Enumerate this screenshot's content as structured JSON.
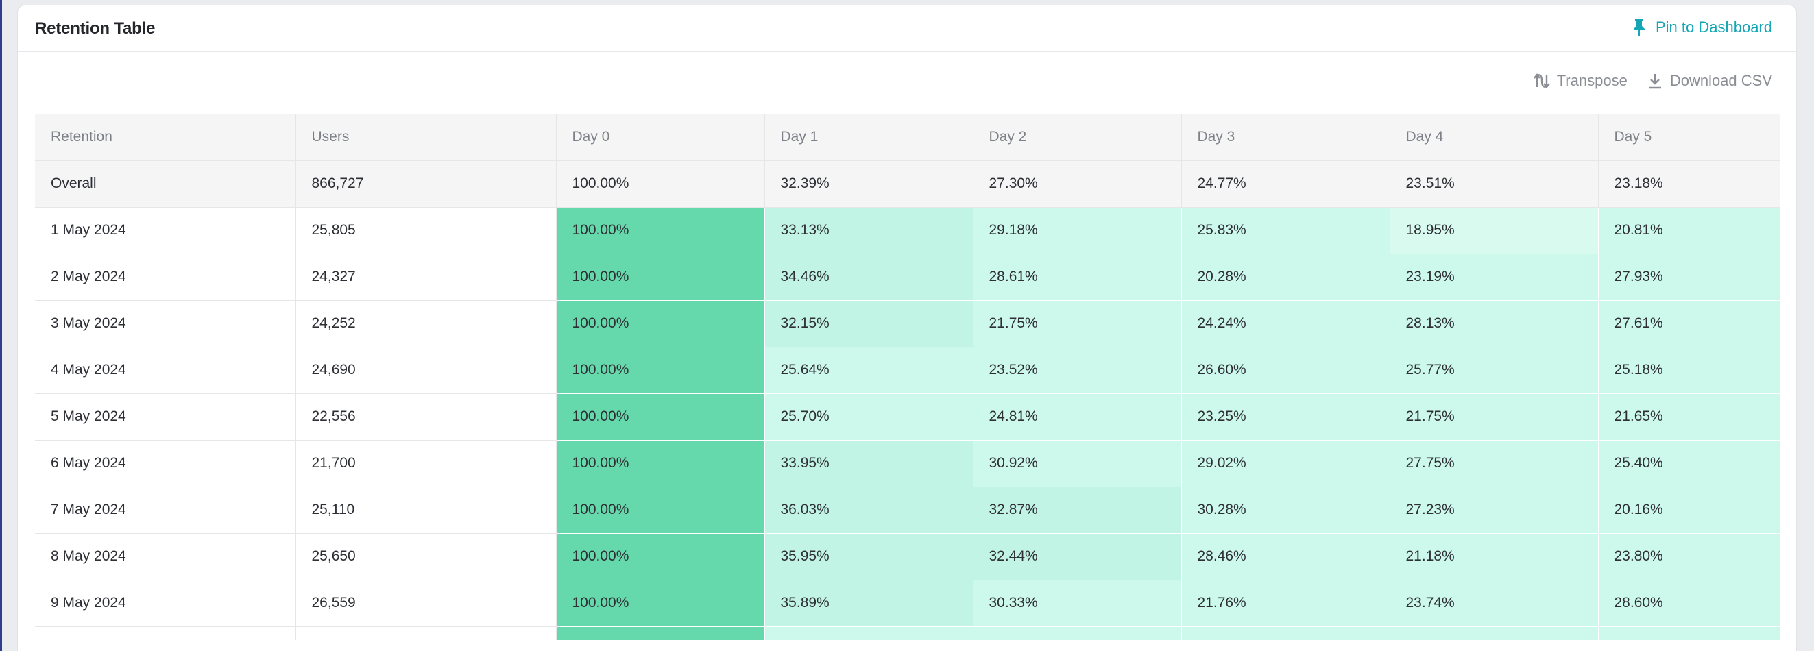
{
  "card": {
    "title": "Retention Table",
    "pin_label": "Pin to Dashboard",
    "transpose_label": "Transpose",
    "download_label": "Download CSV"
  },
  "colors": {
    "accent": "#14a6b4",
    "day0_cell": "#65d9ac",
    "heat_light": "#d9fbef",
    "heat_mid": "#cdf8ec",
    "heat_strong": "#c1f4e4"
  },
  "table": {
    "headers": [
      "Retention",
      "Users",
      "Day 0",
      "Day 1",
      "Day 2",
      "Day 3",
      "Day 4",
      "Day 5"
    ],
    "overall": {
      "label": "Overall",
      "users": "866,727",
      "days": [
        "100.00%",
        "32.39%",
        "27.30%",
        "24.77%",
        "23.51%",
        "23.18%"
      ]
    },
    "rows": [
      {
        "label": "1 May 2024",
        "users": "25,805",
        "days": [
          "100.00%",
          "33.13%",
          "29.18%",
          "25.83%",
          "18.95%",
          "20.81%"
        ]
      },
      {
        "label": "2 May 2024",
        "users": "24,327",
        "days": [
          "100.00%",
          "34.46%",
          "28.61%",
          "20.28%",
          "23.19%",
          "27.93%"
        ]
      },
      {
        "label": "3 May 2024",
        "users": "24,252",
        "days": [
          "100.00%",
          "32.15%",
          "21.75%",
          "24.24%",
          "28.13%",
          "27.61%"
        ]
      },
      {
        "label": "4 May 2024",
        "users": "24,690",
        "days": [
          "100.00%",
          "25.64%",
          "23.52%",
          "26.60%",
          "25.77%",
          "25.18%"
        ]
      },
      {
        "label": "5 May 2024",
        "users": "22,556",
        "days": [
          "100.00%",
          "25.70%",
          "24.81%",
          "23.25%",
          "21.75%",
          "21.65%"
        ]
      },
      {
        "label": "6 May 2024",
        "users": "21,700",
        "days": [
          "100.00%",
          "33.95%",
          "30.92%",
          "29.02%",
          "27.75%",
          "25.40%"
        ]
      },
      {
        "label": "7 May 2024",
        "users": "25,110",
        "days": [
          "100.00%",
          "36.03%",
          "32.87%",
          "30.28%",
          "27.23%",
          "20.16%"
        ]
      },
      {
        "label": "8 May 2024",
        "users": "25,650",
        "days": [
          "100.00%",
          "35.95%",
          "32.44%",
          "28.46%",
          "21.18%",
          "23.80%"
        ]
      },
      {
        "label": "9 May 2024",
        "users": "26,559",
        "days": [
          "100.00%",
          "35.89%",
          "30.33%",
          "21.76%",
          "23.74%",
          "28.60%"
        ]
      },
      {
        "label": "",
        "users": "",
        "days": [
          "",
          "",
          "",
          "",
          "",
          ""
        ]
      }
    ]
  }
}
